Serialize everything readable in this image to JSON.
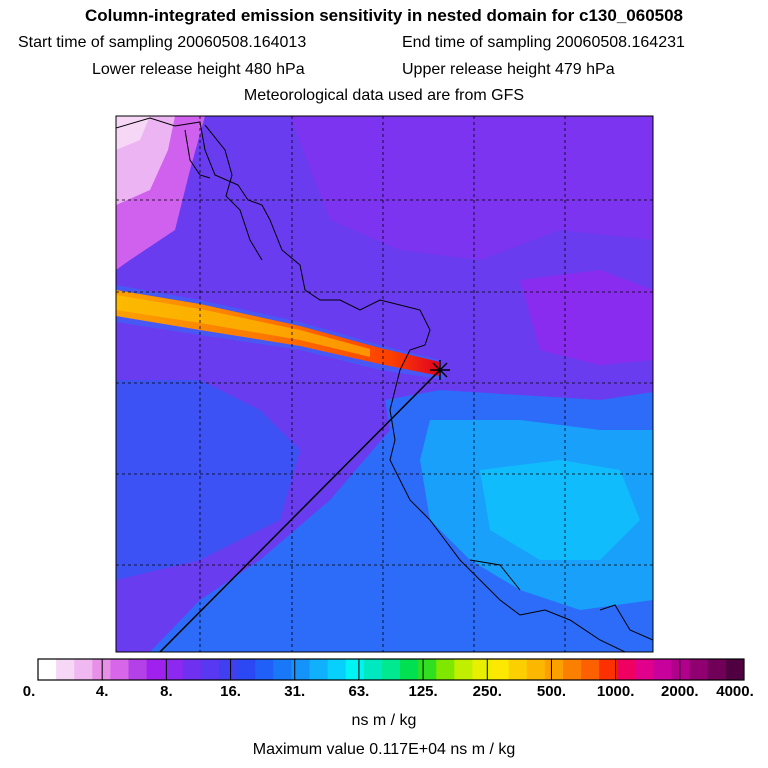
{
  "chart_data": {
    "type": "heatmap",
    "title": "Column-integrated emission sensitivity in nested domain for c130_060508",
    "subtitle_lines": {
      "start_label": "Start time of sampling",
      "start_value": "20060508.164013",
      "end_label": "End time of sampling",
      "end_value": "20060508.164231",
      "lower_label": "Lower release height",
      "lower_value": "480 hPa",
      "upper_label": "Upper release height",
      "upper_value": "479 hPa",
      "met_line": "Meteorological data used are from GFS"
    },
    "colorbar": {
      "tick_labels": [
        "0.",
        "4.",
        "8.",
        "16.",
        "31.",
        "63.",
        "125.",
        "250.",
        "500.",
        "1000.",
        "2000.",
        "4000."
      ],
      "tick_values": [
        0,
        4,
        8,
        16,
        31,
        63,
        125,
        250,
        500,
        1000,
        2000,
        4000
      ],
      "colors": [
        "#ffffff",
        "#f6d8f6",
        "#f0b8f0",
        "#e890e8",
        "#d866e8",
        "#b440e8",
        "#a020ee",
        "#8c28f0",
        "#7030f0",
        "#5838f0",
        "#4040f0",
        "#2c48f4",
        "#2060f8",
        "#1878f8",
        "#1494fa",
        "#10b0fc",
        "#08d0fc",
        "#00f4f4",
        "#00e8c0",
        "#00e890",
        "#00e050",
        "#30e020",
        "#80e800",
        "#c0f000",
        "#e8f000",
        "#fce800",
        "#fcd000",
        "#fcb800",
        "#fca000",
        "#fc8000",
        "#fc6000",
        "#fc3000",
        "#f00060",
        "#e0008c",
        "#c8009c",
        "#b0008c",
        "#900070",
        "#700058",
        "#500040"
      ],
      "units": "ns m / kg"
    },
    "maximum_label": "Maximum value",
    "maximum_value": "0.117E+04",
    "maximum_units": "ns m / kg",
    "release_point_marker": "asterisk"
  }
}
